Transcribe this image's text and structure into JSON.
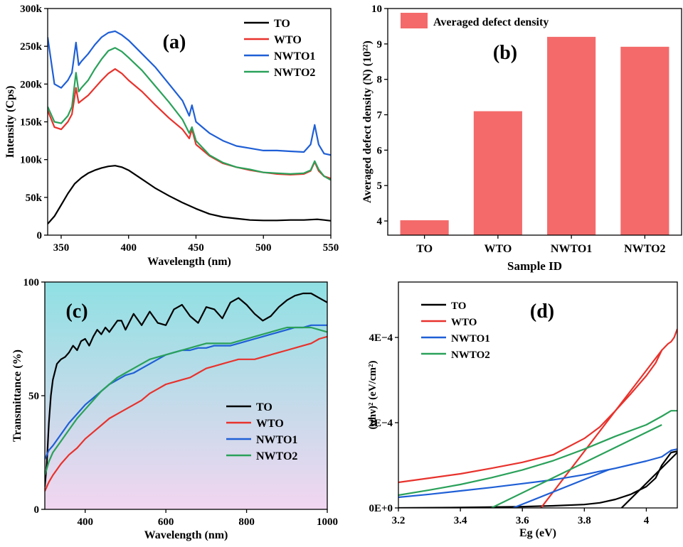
{
  "chart_data": [
    {
      "panel": "(a)",
      "type": "line",
      "xlabel": "Wavelength (nm)",
      "ylabel": "Intensity (Cps)",
      "xlim": [
        340,
        550
      ],
      "ylim": [
        0,
        300000
      ],
      "xticks": [
        350,
        400,
        450,
        500,
        550
      ],
      "yticks": [
        0,
        50000,
        100000,
        150000,
        200000,
        250000,
        300000
      ],
      "ytick_labels": [
        "0",
        "50k",
        "100k",
        "150k",
        "200k",
        "250k",
        "300k"
      ],
      "legend": "top-right",
      "series": [
        {
          "name": "TO",
          "color": "#000000",
          "x": [
            340,
            345,
            350,
            355,
            360,
            365,
            370,
            375,
            380,
            385,
            390,
            395,
            400,
            405,
            410,
            420,
            430,
            440,
            450,
            460,
            470,
            480,
            490,
            500,
            510,
            520,
            530,
            540,
            545,
            550
          ],
          "values": [
            15000,
            25000,
            40000,
            55000,
            68000,
            76000,
            82000,
            86000,
            89000,
            91000,
            92000,
            90000,
            86000,
            80000,
            74000,
            62000,
            52000,
            43000,
            35000,
            28000,
            24000,
            22000,
            20000,
            19500,
            19500,
            20000,
            20000,
            21000,
            20000,
            19000
          ]
        },
        {
          "name": "WTO",
          "color": "#e8322c",
          "x": [
            340,
            345,
            350,
            355,
            358,
            361,
            363,
            365,
            370,
            375,
            380,
            385,
            390,
            395,
            400,
            410,
            420,
            430,
            440,
            445,
            447,
            450,
            460,
            470,
            480,
            490,
            500,
            510,
            520,
            530,
            535,
            538,
            541,
            545,
            550
          ],
          "values": [
            165000,
            143000,
            140000,
            150000,
            160000,
            195000,
            175000,
            178000,
            185000,
            195000,
            205000,
            214000,
            220000,
            214000,
            205000,
            190000,
            172000,
            155000,
            140000,
            128000,
            140000,
            120000,
            105000,
            95000,
            90000,
            86000,
            83000,
            81000,
            80000,
            81000,
            85000,
            97000,
            85000,
            78000,
            75000
          ]
        },
        {
          "name": "NWTO1",
          "color": "#1f5fd6",
          "x": [
            340,
            345,
            350,
            355,
            358,
            361,
            363,
            365,
            370,
            375,
            380,
            385,
            390,
            395,
            400,
            410,
            420,
            430,
            440,
            445,
            447,
            450,
            460,
            470,
            480,
            490,
            500,
            510,
            520,
            530,
            535,
            538,
            541,
            545,
            550
          ],
          "values": [
            262000,
            200000,
            195000,
            205000,
            215000,
            255000,
            225000,
            230000,
            240000,
            252000,
            262000,
            268000,
            270000,
            265000,
            258000,
            240000,
            222000,
            200000,
            178000,
            158000,
            172000,
            150000,
            135000,
            125000,
            118000,
            115000,
            112000,
            112000,
            111000,
            110000,
            120000,
            146000,
            120000,
            108000,
            106000
          ]
        },
        {
          "name": "NWTO2",
          "color": "#2aa15a",
          "x": [
            340,
            345,
            350,
            355,
            358,
            361,
            363,
            365,
            370,
            375,
            380,
            385,
            390,
            395,
            400,
            410,
            420,
            430,
            440,
            445,
            447,
            450,
            460,
            470,
            480,
            490,
            500,
            510,
            520,
            530,
            535,
            538,
            541,
            545,
            550
          ],
          "values": [
            170000,
            150000,
            148000,
            158000,
            170000,
            215000,
            190000,
            195000,
            205000,
            220000,
            233000,
            244000,
            248000,
            243000,
            235000,
            218000,
            197000,
            176000,
            153000,
            135000,
            143000,
            125000,
            106000,
            96000,
            90000,
            87000,
            83000,
            82000,
            81000,
            82000,
            86000,
            98000,
            87000,
            78000,
            73000
          ]
        }
      ]
    },
    {
      "panel": "(b)",
      "type": "bar",
      "xlabel": "Sample ID",
      "ylabel": "Averaged defect density (N) (10²²)",
      "categories": [
        "TO",
        "WTO",
        "NWTO1",
        "NWTO2"
      ],
      "values": [
        4.02,
        7.1,
        9.2,
        8.92
      ],
      "ylim": [
        3.6,
        10
      ],
      "yticks": [
        4,
        5,
        6,
        7,
        8,
        9,
        10
      ],
      "color": "#f46a6a",
      "legend": "top-left",
      "series": [
        {
          "name": "Averaged defect density",
          "values": [
            4.02,
            7.1,
            9.2,
            8.92
          ]
        }
      ]
    },
    {
      "panel": "(c)",
      "type": "line",
      "xlabel": "Wavelength (nm)",
      "ylabel": "Transmittance (%)",
      "xlim": [
        300,
        1000
      ],
      "ylim": [
        0,
        100
      ],
      "xticks": [
        400,
        600,
        800,
        1000
      ],
      "yticks": [
        0,
        50,
        100
      ],
      "background_gradient": [
        "#8fe0e3",
        "#f2d6f0"
      ],
      "legend": "center-right",
      "series": [
        {
          "name": "TO",
          "color": "#000000",
          "x": [
            300,
            305,
            310,
            315,
            320,
            330,
            340,
            350,
            360,
            370,
            380,
            390,
            400,
            410,
            420,
            430,
            440,
            450,
            460,
            480,
            490,
            500,
            520,
            540,
            560,
            580,
            600,
            620,
            640,
            660,
            680,
            700,
            720,
            740,
            760,
            780,
            800,
            820,
            840,
            860,
            880,
            900,
            920,
            940,
            960,
            980,
            1000
          ],
          "values": [
            10,
            20,
            38,
            50,
            57,
            64,
            66,
            67,
            69,
            72,
            70,
            74,
            75,
            72,
            76,
            79,
            77,
            80,
            78,
            83,
            83,
            79,
            86,
            81,
            87,
            82,
            81,
            88,
            90,
            85,
            82,
            89,
            88,
            84,
            91,
            93,
            90,
            86,
            83,
            85,
            89,
            92,
            94,
            95,
            95,
            93,
            91
          ]
        },
        {
          "name": "WTO",
          "color": "#e8322c",
          "x": [
            300,
            305,
            310,
            320,
            340,
            360,
            380,
            400,
            420,
            440,
            460,
            480,
            500,
            520,
            540,
            560,
            580,
            600,
            620,
            640,
            660,
            680,
            700,
            720,
            740,
            760,
            780,
            800,
            820,
            840,
            860,
            880,
            900,
            920,
            940,
            960,
            980,
            1000
          ],
          "values": [
            8,
            10,
            12,
            15,
            20,
            24,
            27,
            31,
            34,
            37,
            40,
            42,
            44,
            46,
            48,
            51,
            53,
            55,
            56,
            57,
            58,
            60,
            62,
            63,
            64,
            65,
            66,
            66,
            66,
            67,
            68,
            69,
            70,
            71,
            72,
            73,
            75,
            76
          ]
        },
        {
          "name": "NWTO1",
          "color": "#1f5fd6",
          "x": [
            300,
            305,
            310,
            320,
            340,
            360,
            380,
            400,
            420,
            440,
            460,
            480,
            500,
            520,
            540,
            560,
            580,
            600,
            620,
            640,
            660,
            680,
            700,
            720,
            740,
            760,
            780,
            800,
            820,
            840,
            860,
            880,
            900,
            920,
            940,
            960,
            980,
            1000
          ],
          "values": [
            22,
            24,
            26,
            28,
            33,
            38,
            42,
            46,
            49,
            52,
            55,
            57,
            59,
            60,
            62,
            64,
            66,
            68,
            69,
            70,
            70,
            71,
            71,
            72,
            72,
            72,
            73,
            74,
            75,
            76,
            77,
            78,
            79,
            80,
            80,
            81,
            81,
            81
          ]
        },
        {
          "name": "NWTO2",
          "color": "#2aa15a",
          "x": [
            300,
            305,
            310,
            320,
            340,
            360,
            380,
            400,
            420,
            440,
            460,
            480,
            500,
            520,
            540,
            560,
            580,
            600,
            620,
            640,
            660,
            680,
            700,
            720,
            740,
            760,
            780,
            800,
            820,
            840,
            860,
            880,
            900,
            920,
            940,
            960,
            980,
            1000
          ],
          "values": [
            15,
            18,
            21,
            25,
            30,
            35,
            40,
            44,
            48,
            52,
            55,
            58,
            60,
            62,
            64,
            66,
            67,
            68,
            69,
            70,
            71,
            72,
            73,
            73,
            73,
            73,
            74,
            75,
            76,
            77,
            78,
            79,
            80,
            80,
            80,
            80,
            79,
            78
          ]
        }
      ]
    },
    {
      "panel": "(d)",
      "type": "line",
      "xlabel": "Eg (eV)",
      "ylabel": "(αhν)² (eV/cm²)",
      "xlim": [
        3.2,
        4.1
      ],
      "ylim": [
        0,
        0.00053
      ],
      "xticks": [
        3.2,
        3.4,
        3.6,
        3.8,
        4.0
      ],
      "yticks": [
        0,
        0.0002,
        0.0004
      ],
      "ytick_labels": [
        "0E+0",
        "2E−4",
        "4E−4"
      ],
      "legend": "top-left",
      "series": [
        {
          "name": "TO",
          "color": "#000000",
          "x": [
            3.2,
            3.4,
            3.6,
            3.7,
            3.8,
            3.85,
            3.9,
            3.95,
            4.0,
            4.03,
            4.05,
            4.07,
            4.08,
            4.1
          ],
          "values": [
            0,
            1e-06,
            3e-06,
            5e-06,
            8e-06,
            1.2e-05,
            2e-05,
            3.2e-05,
            5e-05,
            7e-05,
            0.0001,
            0.00012,
            0.00013,
            0.000133
          ],
          "fit_x": [
            3.92,
            4.1
          ],
          "fit_y": [
            0,
            0.00013
          ]
        },
        {
          "name": "WTO",
          "color": "#e8322c",
          "x": [
            3.2,
            3.3,
            3.4,
            3.5,
            3.6,
            3.7,
            3.8,
            3.85,
            3.9,
            3.95,
            4.0,
            4.03,
            4.05,
            4.07,
            4.08,
            4.09,
            4.1
          ],
          "values": [
            6e-05,
            7e-05,
            8e-05,
            9.3e-05,
            0.000107,
            0.000125,
            0.000163,
            0.00019,
            0.000228,
            0.000268,
            0.00031,
            0.00034,
            0.00037,
            0.000385,
            0.00039,
            0.0004,
            0.00042
          ],
          "fit_x": [
            3.66,
            4.05
          ],
          "fit_y": [
            0,
            0.00037
          ]
        },
        {
          "name": "NWTO1",
          "color": "#1f5fd6",
          "x": [
            3.2,
            3.3,
            3.4,
            3.5,
            3.6,
            3.7,
            3.8,
            3.85,
            3.88,
            3.9,
            4.0,
            4.05,
            4.08,
            4.1
          ],
          "values": [
            2.5e-05,
            3.2e-05,
            4e-05,
            4.8e-05,
            5.7e-05,
            6.6e-05,
            7.8e-05,
            8.6e-05,
            9e-05,
            9.3e-05,
            0.00011,
            0.00012,
            0.000135,
            0.000138
          ],
          "fit_x": [
            3.57,
            3.88
          ],
          "fit_y": [
            0,
            9e-05
          ]
        },
        {
          "name": "NWTO2",
          "color": "#2aa15a",
          "x": [
            3.2,
            3.3,
            3.4,
            3.5,
            3.6,
            3.7,
            3.8,
            3.9,
            4.0,
            4.05,
            4.08,
            4.1
          ],
          "values": [
            3e-05,
            4.2e-05,
            5.5e-05,
            7.1e-05,
            8.9e-05,
            0.000111,
            0.000138,
            0.000168,
            0.000195,
            0.000215,
            0.000228,
            0.000228
          ],
          "fit_x": [
            3.5,
            4.05
          ],
          "fit_y": [
            0,
            0.000195
          ]
        }
      ]
    }
  ]
}
